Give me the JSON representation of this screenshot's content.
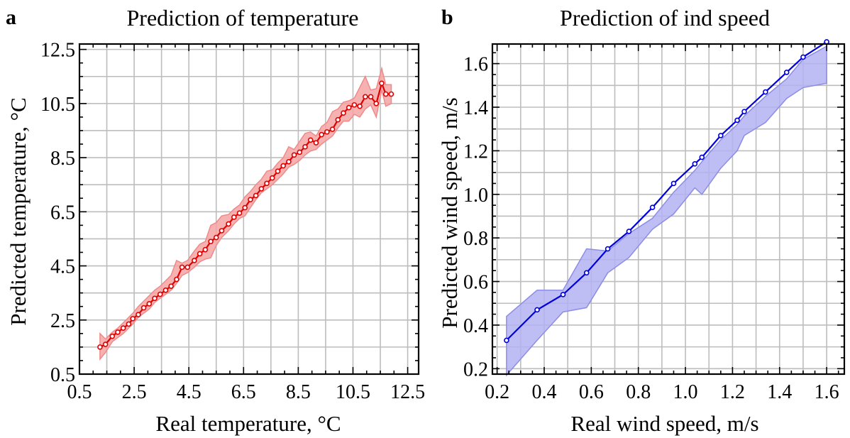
{
  "chart_data": [
    {
      "type": "line",
      "panel_label": "a",
      "title": "Prediction of temperature",
      "xlabel": "Real temperature, °C",
      "ylabel": "Predicted temperature, °C",
      "xlim": [
        0.5,
        12.9
      ],
      "ylim": [
        0.5,
        12.7
      ],
      "xticks": [
        "0.5",
        "2.5",
        "4.5",
        "6.5",
        "8.5",
        "10.5",
        "12.5"
      ],
      "yticks": [
        "0.5",
        "2.5",
        "4.5",
        "6.5",
        "8.5",
        "10.5",
        "12.5"
      ],
      "grid": true,
      "legend": "none",
      "colors": {
        "line": "#e00000",
        "band": "#f4a3a3",
        "band_edge": "#f08a8a"
      },
      "series": [
        {
          "x": [
            1.25,
            1.45,
            1.7,
            1.9,
            2.1,
            2.3,
            2.45,
            2.65,
            2.85,
            3.05,
            3.25,
            3.45,
            3.65,
            3.85,
            4.05,
            4.25,
            4.45,
            4.7,
            4.9,
            5.1,
            5.3,
            5.5,
            5.7,
            5.95,
            6.15,
            6.35,
            6.55,
            6.75,
            6.95,
            7.15,
            7.35,
            7.55,
            7.75,
            7.95,
            8.15,
            8.35,
            8.55,
            8.75,
            8.95,
            9.15,
            9.35,
            9.55,
            9.75,
            9.95,
            10.15,
            10.35,
            10.55,
            10.75,
            10.95,
            11.15,
            11.35,
            11.55,
            11.7,
            11.9
          ],
          "y": [
            1.5,
            1.6,
            1.9,
            2.05,
            2.2,
            2.35,
            2.55,
            2.7,
            2.95,
            3.1,
            3.3,
            3.45,
            3.6,
            3.75,
            4.0,
            4.45,
            4.45,
            4.7,
            4.95,
            5.1,
            5.4,
            5.55,
            5.8,
            6.05,
            6.3,
            6.45,
            6.65,
            6.95,
            7.1,
            7.35,
            7.55,
            7.75,
            8.0,
            8.2,
            8.35,
            8.6,
            8.7,
            8.9,
            9.15,
            9.05,
            9.35,
            9.45,
            9.55,
            9.9,
            10.15,
            10.35,
            10.45,
            10.4,
            10.75,
            10.75,
            10.5,
            11.25,
            10.85,
            10.85
          ],
          "upper": [
            2.0,
            1.8,
            2.05,
            2.2,
            2.4,
            2.6,
            2.75,
            3.0,
            3.2,
            3.4,
            3.6,
            3.75,
            3.95,
            4.15,
            4.7,
            4.6,
            4.7,
            5.05,
            5.3,
            5.4,
            6.0,
            6.1,
            6.35,
            6.4,
            6.6,
            6.75,
            7.05,
            7.25,
            7.5,
            7.7,
            8.0,
            8.05,
            8.3,
            8.5,
            8.9,
            8.8,
            9.1,
            9.4,
            9.45,
            9.3,
            9.65,
            9.8,
            10.2,
            10.3,
            10.55,
            10.6,
            10.7,
            11.1,
            11.5,
            11.0,
            11.05,
            11.8,
            11.2,
            11.2
          ],
          "lower": [
            1.05,
            1.3,
            1.7,
            1.85,
            2.0,
            2.2,
            2.35,
            2.6,
            2.75,
            2.9,
            3.15,
            3.3,
            3.45,
            3.6,
            3.85,
            4.15,
            4.25,
            4.45,
            4.65,
            4.75,
            4.8,
            5.25,
            5.55,
            5.8,
            6.05,
            6.25,
            6.35,
            6.65,
            6.95,
            7.2,
            7.35,
            7.5,
            7.7,
            7.9,
            8.15,
            8.25,
            8.4,
            8.6,
            8.75,
            8.8,
            9.0,
            9.15,
            9.3,
            9.6,
            9.85,
            9.85,
            10.1,
            10.0,
            10.3,
            10.45,
            10.0,
            11.0,
            10.4,
            10.5
          ]
        }
      ]
    },
    {
      "type": "line",
      "panel_label": "b",
      "title": "Prediction of ind speed",
      "xlabel": "Real wind speed, m/s",
      "ylabel": "Predicted wind speed, m/s",
      "xlim": [
        0.18,
        1.675
      ],
      "ylim": [
        0.175,
        1.69
      ],
      "xticks": [
        "0.2",
        "0.4",
        "0.6",
        "0.8",
        "1.0",
        "1.2",
        "1.4",
        "1.6"
      ],
      "yticks": [
        "0.2",
        "0.4",
        "0.6",
        "0.8",
        "1.0",
        "1.2",
        "1.4",
        "1.6"
      ],
      "grid": true,
      "legend": "none",
      "colors": {
        "line": "#0000dd",
        "band": "#b3b3f2",
        "band_edge": "#8d8de6"
      },
      "series": [
        {
          "x": [
            0.24,
            0.37,
            0.48,
            0.58,
            0.67,
            0.76,
            0.86,
            0.95,
            1.04,
            1.07,
            1.15,
            1.22,
            1.25,
            1.34,
            1.43,
            1.5,
            1.6
          ],
          "y": [
            0.33,
            0.47,
            0.54,
            0.64,
            0.75,
            0.83,
            0.94,
            1.05,
            1.14,
            1.17,
            1.27,
            1.34,
            1.38,
            1.47,
            1.56,
            1.63,
            1.7
          ],
          "upper": [
            0.44,
            0.56,
            0.56,
            0.75,
            0.74,
            0.82,
            0.89,
            1.01,
            1.11,
            1.15,
            1.25,
            1.32,
            1.36,
            1.45,
            1.53,
            1.62,
            1.68
          ],
          "lower": [
            0.17,
            0.33,
            0.46,
            0.48,
            0.64,
            0.71,
            0.84,
            0.91,
            1.03,
            1.0,
            1.12,
            1.2,
            1.27,
            1.33,
            1.44,
            1.49,
            1.51
          ]
        }
      ]
    }
  ]
}
